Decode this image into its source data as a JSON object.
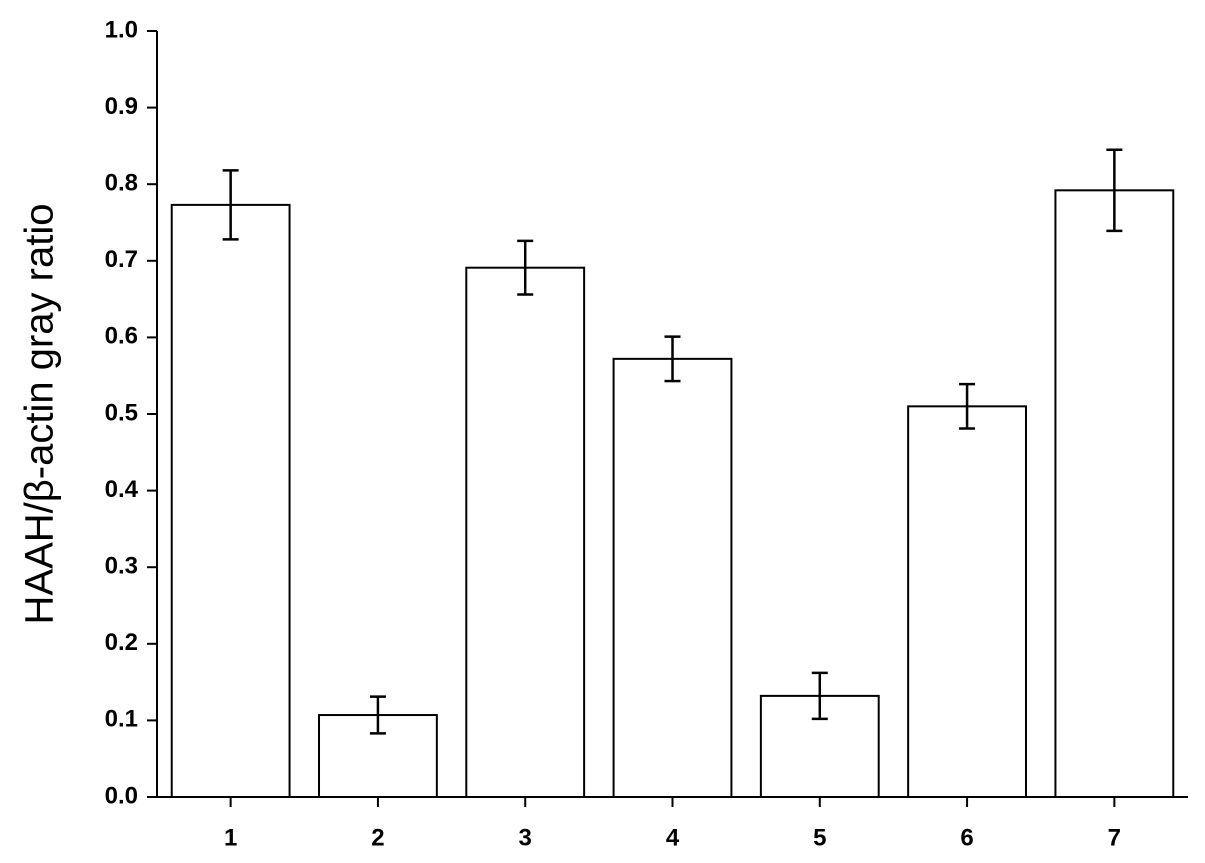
{
  "chart_data": {
    "type": "bar",
    "y_label": "HAAH/β-actin gray ratio",
    "categories": [
      "1",
      "2",
      "3",
      "4",
      "5",
      "6",
      "7"
    ],
    "values": [
      0.773,
      0.107,
      0.691,
      0.572,
      0.132,
      0.51,
      0.792
    ],
    "errors": [
      0.045,
      0.024,
      0.035,
      0.029,
      0.03,
      0.029,
      0.053
    ],
    "color": "#ffffff",
    "ylim": [
      0,
      1.0
    ],
    "yticks": [
      {
        "value": 0,
        "label": "0.0"
      },
      0.1,
      0.2,
      0.3,
      0.4,
      0.5,
      0.6,
      0.7,
      0.8,
      0.9,
      {
        "value": 1.0,
        "label": "1.0"
      }
    ],
    "grid": false
  }
}
